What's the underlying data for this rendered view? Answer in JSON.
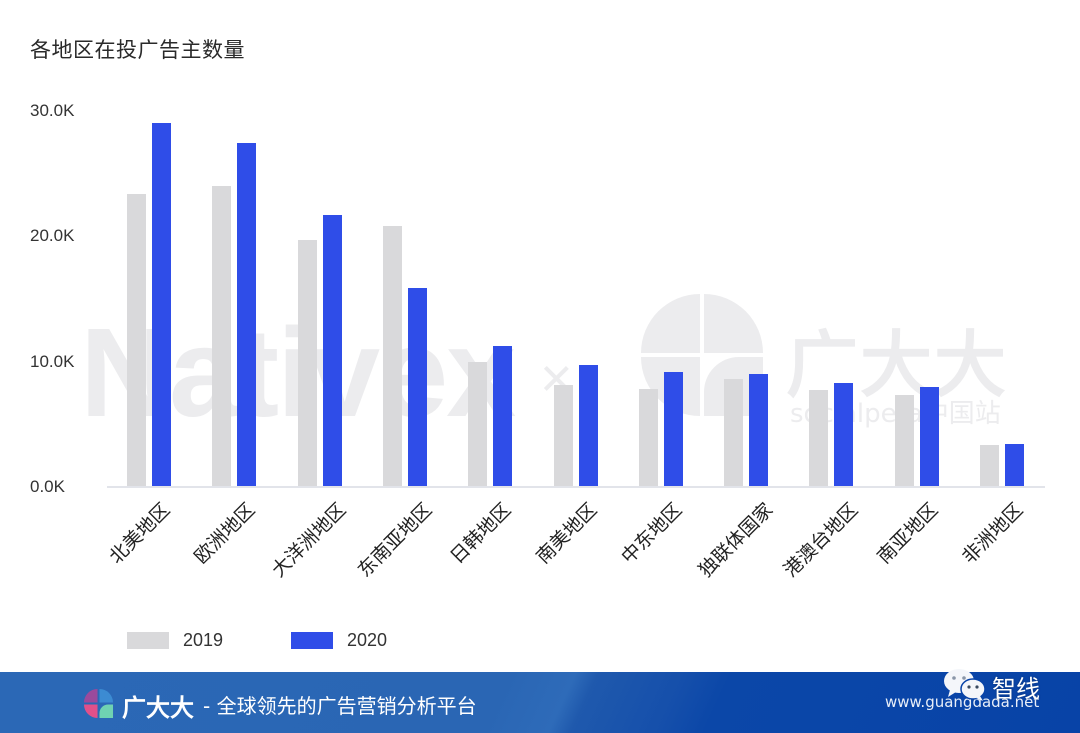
{
  "title": "各地区在投广告主数量",
  "watermark": {
    "left_brand": "Nativex",
    "separator": "×",
    "right_brand": "广大大",
    "right_sub": "socialpeta中国站"
  },
  "y_axis": {
    "ticks": [
      "30.0K",
      "20.0K",
      "10.0K",
      "0.0K"
    ]
  },
  "legend": [
    {
      "label": "2019",
      "color": "#d9d9db"
    },
    {
      "label": "2020",
      "color": "#2f4de8"
    }
  ],
  "footer": {
    "brand": "广大大",
    "tagline": "- 全球领先的广告营销分析平台",
    "url": "www.guangdada.net",
    "account": "智线"
  },
  "colors": {
    "series_2019": "#d9d9db",
    "series_2020": "#2f4de8",
    "footer_left": "#2a66b4",
    "footer_right": "#0843a7"
  },
  "chart_data": {
    "type": "bar",
    "title": "各地区在投广告主数量",
    "xlabel": "",
    "ylabel": "",
    "ylim": [
      0,
      30000
    ],
    "y_tick_labels": [
      "0.0K",
      "10.0K",
      "20.0K",
      "30.0K"
    ],
    "grid": false,
    "legend_position": "bottom-left",
    "categories": [
      "北美地区",
      "欧洲地区",
      "大洋洲地区",
      "东南亚地区",
      "日韩地区",
      "南美地区",
      "中东地区",
      "独联体国家",
      "港澳台地区",
      "南亚地区",
      "非洲地区"
    ],
    "series": [
      {
        "name": "2019",
        "color": "#d9d9db",
        "values": [
          23500,
          24100,
          19800,
          20900,
          10000,
          8100,
          7800,
          8600,
          7700,
          7300,
          3300
        ]
      },
      {
        "name": "2020",
        "color": "#2f4de8",
        "values": [
          29200,
          27600,
          21800,
          15900,
          11300,
          9700,
          9200,
          9000,
          8300,
          8000,
          3400
        ]
      }
    ]
  }
}
